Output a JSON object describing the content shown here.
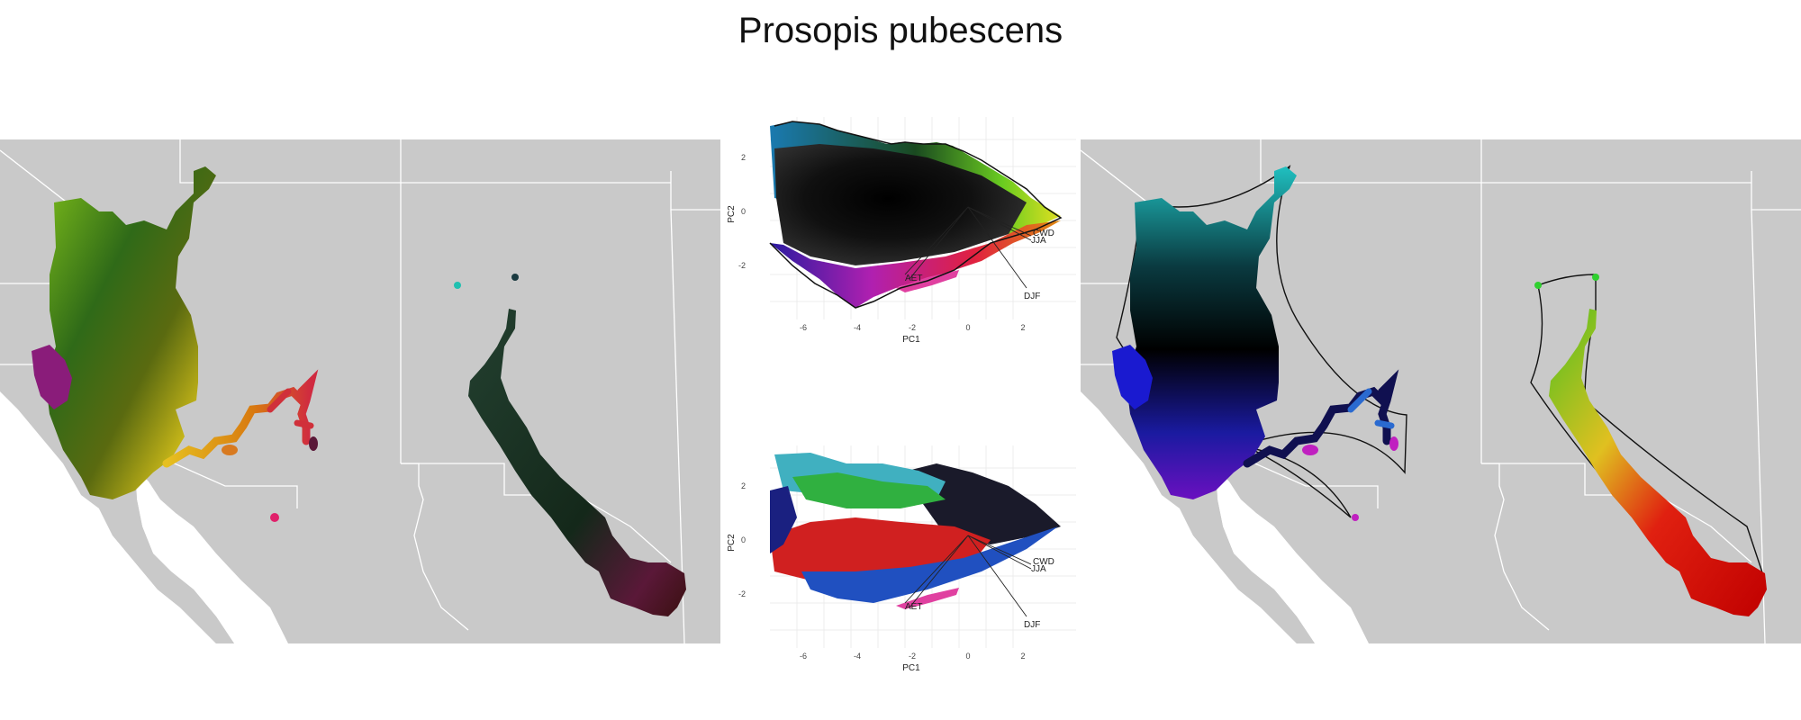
{
  "title": "Prosopis pubescens",
  "colors": {
    "land": "#c9c9c9",
    "water": "#ffffff",
    "border": "#ffffff",
    "hull": "#111111",
    "grid": "#e9e9e9"
  },
  "pca_plots": [
    {
      "xlabel": "PC1",
      "ylabel": "PC2",
      "xticks": [
        "-6",
        "-4",
        "-2",
        "0",
        "2"
      ],
      "yticks": [
        "2",
        "0",
        "-2"
      ],
      "vectors": [
        "CWD",
        "JJA",
        "DJF",
        "AET"
      ]
    },
    {
      "xlabel": "PC1",
      "ylabel": "PC2",
      "xticks": [
        "-6",
        "-4",
        "-2",
        "0",
        "2"
      ],
      "yticks": [
        "2",
        "0",
        "-2"
      ],
      "vectors": [
        "CWD",
        "JJA",
        "DJF",
        "AET"
      ]
    }
  ]
}
